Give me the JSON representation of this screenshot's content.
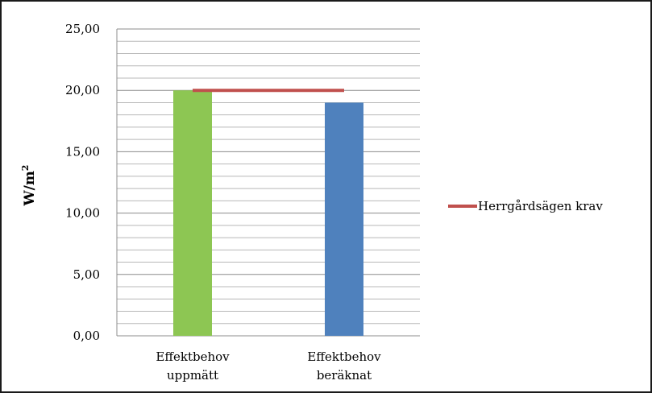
{
  "chart_data": {
    "type": "bar",
    "categories": [
      [
        "Effektbehov",
        "uppmätt"
      ],
      [
        "Effektbehov",
        "beräknat"
      ]
    ],
    "values": [
      20.0,
      19.0
    ],
    "bar_colors": [
      "#8dc653",
      "#4f81bd"
    ],
    "reference_line": {
      "name": "Herrgårdsägen krav",
      "value": 20.0,
      "color": "#c0504d"
    },
    "ylabel": "W/m",
    "ylabel_superscript": "2",
    "ylim": [
      0,
      25
    ],
    "yticks": [
      "0,00",
      "5,00",
      "10,00",
      "15,00",
      "20,00",
      "25,00"
    ],
    "ytick_values": [
      0,
      5,
      10,
      15,
      20,
      25
    ],
    "minor_grid_step": 1,
    "grid": true,
    "legend_position": "right"
  }
}
